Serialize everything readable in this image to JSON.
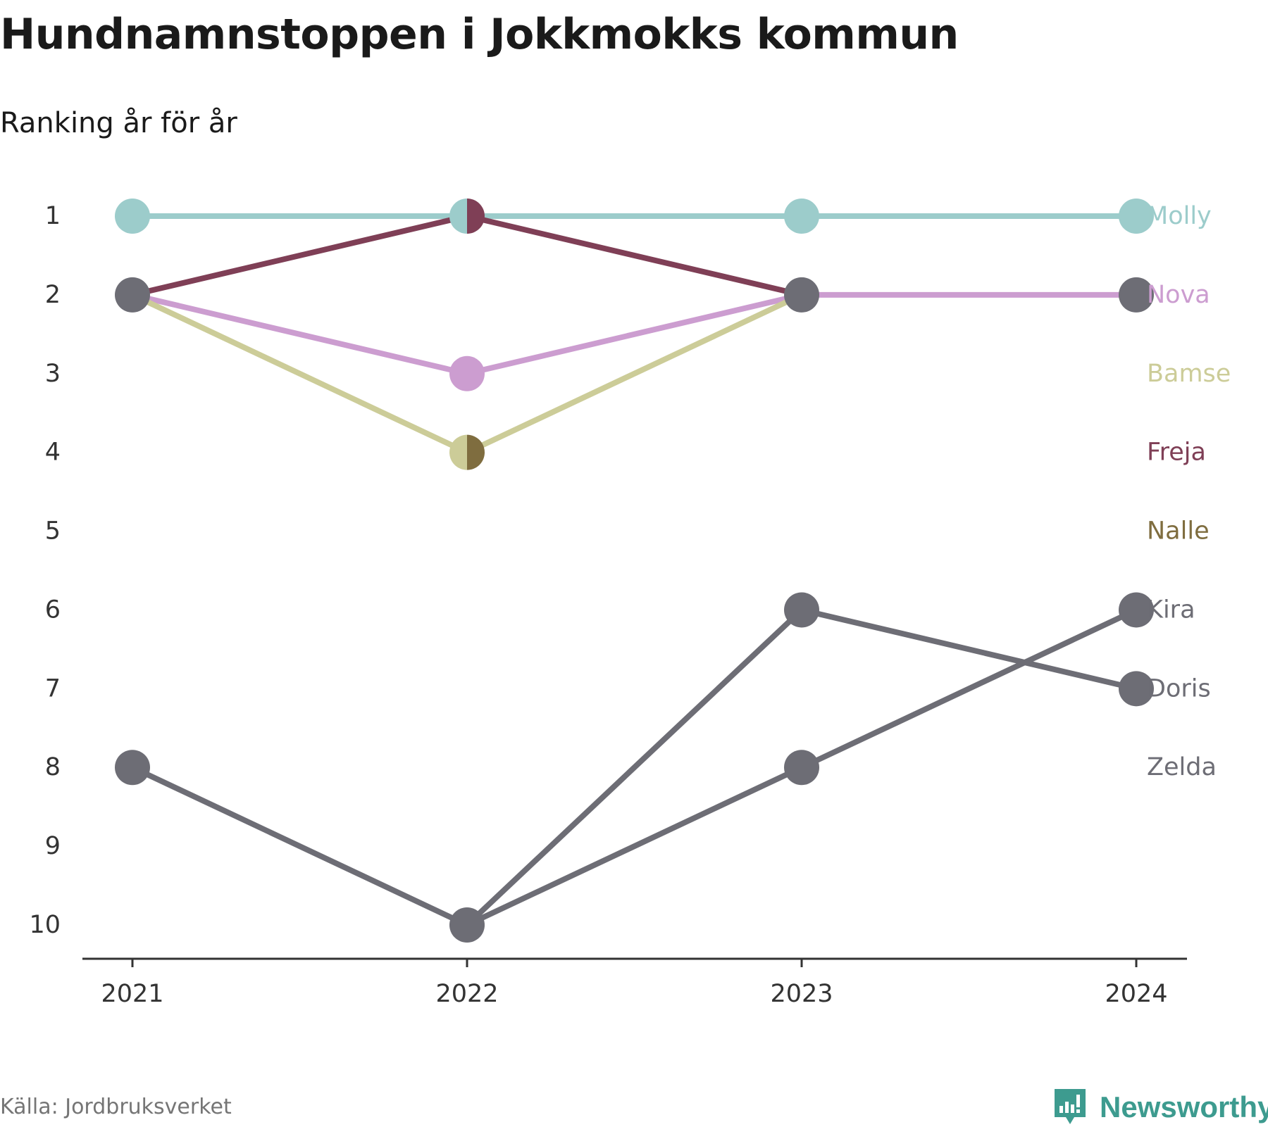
{
  "title": "Hundnamnstoppen i Jokkmokks kommun",
  "subtitle": "Ranking år för år",
  "source": "Källa: Jordbruksverket",
  "brand": {
    "name": "Newsworthy",
    "icon": "newsworthy-logo-icon",
    "color": "#3d9b8f"
  },
  "chart_data": {
    "type": "line",
    "title": "Hundnamnstoppen i Jokkmokks kommun",
    "subtitle": "Ranking år för år",
    "x": [
      "2021",
      "2022",
      "2023",
      "2024"
    ],
    "y_ticks": [
      "1",
      "2",
      "3",
      "4",
      "5",
      "6",
      "7",
      "8",
      "9",
      "10"
    ],
    "ylim": [
      1,
      10
    ],
    "y_inverted": true,
    "grid": false,
    "legend": "right-end-labels",
    "series": [
      {
        "name": "Molly",
        "color": "#9ccccb",
        "ranks": [
          1,
          1,
          1,
          1
        ]
      },
      {
        "name": "Nova",
        "color": "#cc9dd0",
        "ranks": [
          2,
          3,
          2,
          2
        ]
      },
      {
        "name": "Bamse",
        "color": "#cccc98",
        "ranks": [
          2,
          4,
          2,
          null
        ]
      },
      {
        "name": "Freja",
        "color": "#7f3f56",
        "ranks": [
          2,
          1,
          2,
          null
        ]
      },
      {
        "name": "Nalle",
        "color": "#7f6d3f",
        "ranks": [
          null,
          4,
          null,
          null
        ]
      },
      {
        "name": "Kira",
        "color": "#6d6d75",
        "ranks": [
          null,
          10,
          8,
          6
        ]
      },
      {
        "name": "Doris",
        "color": "#6d6d75",
        "ranks": [
          null,
          10,
          6,
          7
        ]
      },
      {
        "name": "Zelda",
        "color": "#6d6d75",
        "ranks": [
          8,
          10,
          null,
          null
        ]
      }
    ],
    "markers": [
      {
        "x": "2021",
        "rank": 1,
        "colors": [
          "#9ccccb"
        ]
      },
      {
        "x": "2021",
        "rank": 2,
        "colors": [
          "#6d6d75"
        ]
      },
      {
        "x": "2021",
        "rank": 8,
        "colors": [
          "#6d6d75"
        ]
      },
      {
        "x": "2022",
        "rank": 1,
        "colors": [
          "#9ccccb",
          "#7f3f56"
        ]
      },
      {
        "x": "2022",
        "rank": 3,
        "colors": [
          "#cc9dd0"
        ]
      },
      {
        "x": "2022",
        "rank": 4,
        "colors": [
          "#cccc98",
          "#7f6d3f"
        ]
      },
      {
        "x": "2022",
        "rank": 10,
        "colors": [
          "#6d6d75"
        ]
      },
      {
        "x": "2023",
        "rank": 1,
        "colors": [
          "#9ccccb"
        ]
      },
      {
        "x": "2023",
        "rank": 2,
        "colors": [
          "#6d6d75"
        ]
      },
      {
        "x": "2023",
        "rank": 6,
        "colors": [
          "#6d6d75"
        ]
      },
      {
        "x": "2023",
        "rank": 8,
        "colors": [
          "#6d6d75"
        ]
      },
      {
        "x": "2024",
        "rank": 1,
        "colors": [
          "#9ccccb"
        ]
      },
      {
        "x": "2024",
        "rank": 2,
        "colors": [
          "#6d6d75"
        ]
      },
      {
        "x": "2024",
        "rank": 6,
        "colors": [
          "#6d6d75"
        ]
      },
      {
        "x": "2024",
        "rank": 7,
        "colors": [
          "#6d6d75"
        ]
      }
    ],
    "end_labels": [
      {
        "name": "Molly",
        "rank": 1,
        "color": "#9ccccb"
      },
      {
        "name": "Nova",
        "rank": 2,
        "color": "#cc9dd0"
      },
      {
        "name": "Bamse",
        "rank": 3,
        "color": "#cccc98"
      },
      {
        "name": "Freja",
        "rank": 4,
        "color": "#7f3f56"
      },
      {
        "name": "Nalle",
        "rank": 5,
        "color": "#7f6d3f"
      },
      {
        "name": "Kira",
        "rank": 6,
        "color": "#6d6d75"
      },
      {
        "name": "Doris",
        "rank": 7,
        "color": "#6d6d75"
      },
      {
        "name": "Zelda",
        "rank": 8,
        "color": "#6d6d75"
      }
    ]
  }
}
